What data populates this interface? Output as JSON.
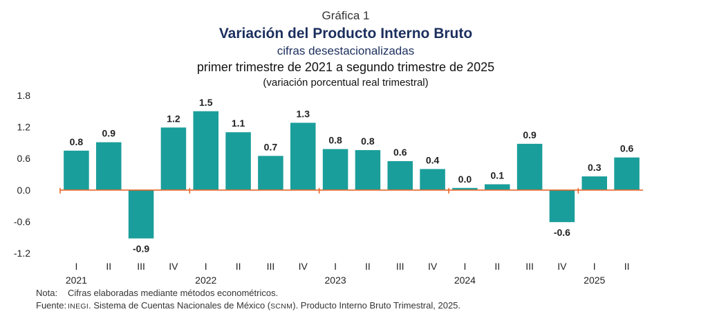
{
  "header": {
    "label": "Gráfica 1",
    "title": "Variación del Producto Interno Bruto",
    "subtitle": "cifras desestacionalizadas",
    "period": "primer trimestre de 2021 a segundo trimestre de 2025",
    "unit": "(variación porcentual real trimestral)"
  },
  "chart_data": {
    "type": "bar",
    "title": "Variación del Producto Interno Bruto",
    "ylabel": "(variación porcentual real trimestral)",
    "xlabel": "",
    "ylim": [
      -1.2,
      1.8
    ],
    "yticks": [
      "1.8",
      "1.2",
      "0.6",
      "0.0",
      "-0.6",
      "-1.2"
    ],
    "grid": false,
    "legend": "none",
    "color": "#1a9e9b",
    "axis_color": "#e8672a",
    "categories": [
      "I",
      "II",
      "III",
      "IV",
      "I",
      "II",
      "III",
      "IV",
      "I",
      "II",
      "III",
      "IV",
      "I",
      "II",
      "III",
      "IV",
      "I",
      "II"
    ],
    "years": [
      "2021",
      "2022",
      "2023",
      "2024",
      "2025"
    ],
    "year_start_index": [
      0,
      4,
      8,
      12,
      16
    ],
    "values": [
      0.75,
      0.91,
      -0.92,
      1.19,
      1.5,
      1.1,
      0.65,
      1.28,
      0.78,
      0.76,
      0.55,
      0.4,
      0.04,
      0.11,
      0.88,
      -0.61,
      0.26,
      0.62
    ],
    "value_labels": [
      "0.8",
      "0.9",
      "-0.9",
      "1.2",
      "1.5",
      "1.1",
      "0.7",
      "1.3",
      "0.8",
      "0.8",
      "0.6",
      "0.4",
      "0.0",
      "0.1",
      "0.9",
      "-0.6",
      "0.3",
      "0.6"
    ]
  },
  "footer": {
    "note_key": "Nota:",
    "note_text": "Cifras elaboradas mediante métodos econométricos.",
    "source_key": "Fuente:",
    "source_org": "INEGI",
    "source_text_1": ". Sistema de Cuentas Nacionales de México (",
    "source_abbr": "SCNM",
    "source_text_2": "). Producto Interno Bruto Trimestral, 2025."
  }
}
